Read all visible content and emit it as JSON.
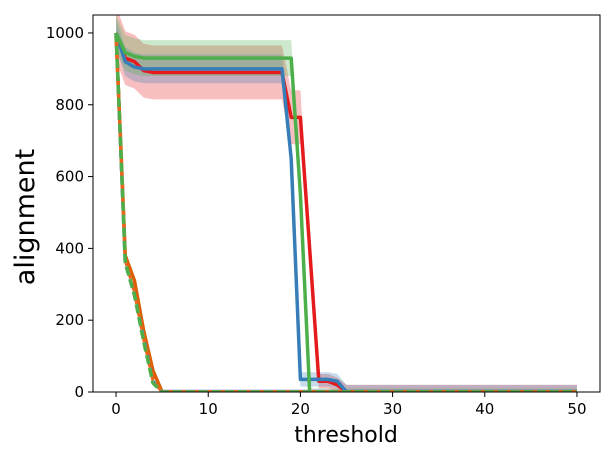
{
  "chart_data": {
    "type": "line",
    "title": "",
    "xlabel": "threshold",
    "ylabel": "alignment",
    "xlim": [
      -2.5,
      52.5
    ],
    "ylim": [
      0,
      1050
    ],
    "xticks": [
      0,
      10,
      20,
      30,
      40,
      50
    ],
    "yticks": [
      0,
      200,
      400,
      600,
      800,
      1000
    ],
    "grid": false,
    "legend": "none",
    "series": [
      {
        "color": "#e41a1c",
        "style": "solid",
        "band": [
          20,
          75
        ],
        "points": [
          [
            0,
            1000
          ],
          [
            1,
            930
          ],
          [
            2,
            920
          ],
          [
            3,
            895
          ],
          [
            4,
            890
          ],
          [
            5,
            890
          ],
          [
            18,
            890
          ],
          [
            19,
            765
          ],
          [
            20,
            765
          ],
          [
            21,
            400
          ],
          [
            22,
            30
          ],
          [
            23,
            30
          ],
          [
            24,
            20
          ],
          [
            25,
            0
          ],
          [
            26,
            0
          ],
          [
            50,
            0
          ]
        ]
      },
      {
        "color": "#377eb8",
        "style": "solid",
        "band": [
          20,
          40
        ],
        "points": [
          [
            0,
            1000
          ],
          [
            1,
            920
          ],
          [
            2,
            905
          ],
          [
            3,
            900
          ],
          [
            4,
            900
          ],
          [
            18,
            900
          ],
          [
            19,
            650
          ],
          [
            20,
            35
          ],
          [
            21,
            35
          ],
          [
            22,
            35
          ],
          [
            23,
            35
          ],
          [
            24,
            30
          ],
          [
            25,
            0
          ],
          [
            50,
            0
          ]
        ]
      },
      {
        "color": "#4daf4a",
        "style": "solid",
        "band": [
          10,
          50
        ],
        "points": [
          [
            0,
            1000
          ],
          [
            1,
            945
          ],
          [
            2,
            935
          ],
          [
            3,
            930
          ],
          [
            19,
            930
          ],
          [
            20,
            550
          ],
          [
            21,
            0
          ],
          [
            50,
            0
          ]
        ]
      },
      {
        "color": "#d95f02",
        "style": "solid",
        "band": [
          0,
          0
        ],
        "points": [
          [
            0,
            1000
          ],
          [
            1,
            380
          ],
          [
            2,
            310
          ],
          [
            3,
            170
          ],
          [
            4,
            60
          ],
          [
            5,
            0
          ],
          [
            50,
            0
          ]
        ]
      },
      {
        "color": "#6a7fc0",
        "style": "dashed",
        "band": [
          8,
          15
        ],
        "points": [
          [
            0,
            1000
          ],
          [
            1,
            360
          ],
          [
            2,
            270
          ],
          [
            3,
            150
          ],
          [
            4,
            30
          ],
          [
            5,
            0
          ],
          [
            50,
            0
          ]
        ]
      },
      {
        "color": "#e8651a",
        "style": "dashed",
        "band": [
          0,
          0
        ],
        "points": [
          [
            0,
            990
          ],
          [
            0.5,
            700
          ],
          [
            1,
            370
          ],
          [
            2,
            280
          ],
          [
            3,
            150
          ],
          [
            4,
            35
          ],
          [
            5,
            0
          ],
          [
            50,
            0
          ]
        ]
      },
      {
        "color": "#4daf4a",
        "style": "dashed",
        "band": [
          0,
          0
        ],
        "points": [
          [
            0,
            1000
          ],
          [
            0.5,
            690
          ],
          [
            1,
            360
          ],
          [
            2,
            270
          ],
          [
            3,
            140
          ],
          [
            4,
            25
          ],
          [
            5,
            0
          ],
          [
            50,
            0
          ]
        ]
      }
    ]
  }
}
